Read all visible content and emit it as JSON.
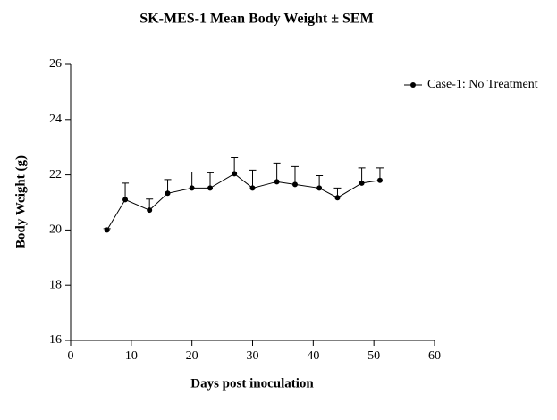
{
  "chart_data": {
    "type": "line",
    "title": "SK-MES-1 Mean Body Weight ± SEM",
    "x_label": "Days post inoculation",
    "y_label": "Body Weight (g)",
    "x": [
      6,
      9,
      13,
      16,
      20,
      23,
      27,
      30,
      34,
      37,
      41,
      44,
      48,
      51
    ],
    "series": [
      {
        "name": "Case-1: No Treatment",
        "color": "#000000",
        "values": [
          20.0,
          21.1,
          20.72,
          21.33,
          21.52,
          21.52,
          22.04,
          21.52,
          21.75,
          21.65,
          21.52,
          21.17,
          21.7,
          21.8
        ],
        "errors": [
          0.05,
          0.6,
          0.4,
          0.5,
          0.58,
          0.55,
          0.58,
          0.65,
          0.68,
          0.65,
          0.45,
          0.35,
          0.55,
          0.45
        ]
      }
    ],
    "xlim": [
      0,
      60
    ],
    "xticks": [
      0,
      10,
      20,
      30,
      40,
      50,
      60
    ],
    "ylim": [
      16,
      26
    ],
    "yticks": [
      16,
      18,
      20,
      22,
      24,
      26
    ],
    "legend": "top-right",
    "grid": false
  }
}
